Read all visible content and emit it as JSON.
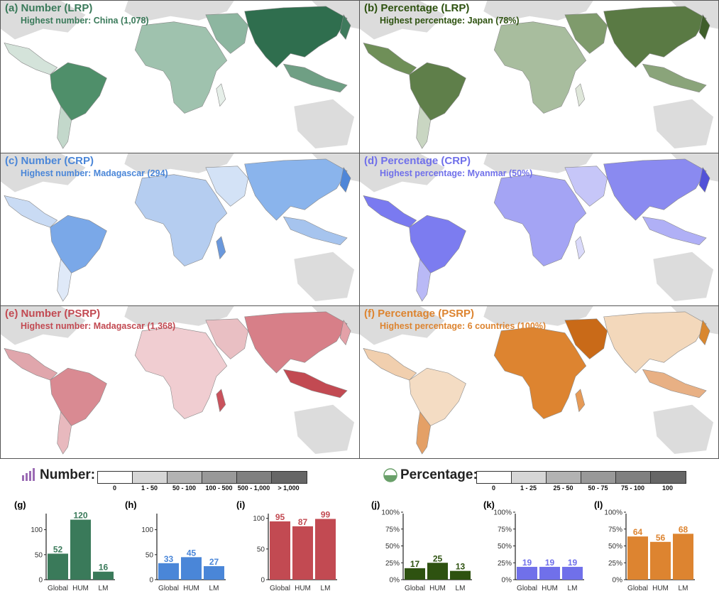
{
  "panels": [
    {
      "id": "a",
      "title": "(a) Number (LRP)",
      "subtitle": "Highest number: China (1,078)",
      "color": "#3a7a5a",
      "fill": "#4f8f6a"
    },
    {
      "id": "b",
      "title": "(b) Percentage (LRP)",
      "subtitle": "Highest percentage: Japan (78%)",
      "color": "#2e5210",
      "fill": "#5f7f4a"
    },
    {
      "id": "c",
      "title": "(c) Number (CRP)",
      "subtitle": "Highest number: Madagascar (294)",
      "color": "#4a86d8",
      "fill": "#7aa8e8"
    },
    {
      "id": "d",
      "title": "(d) Percentage (CRP)",
      "subtitle": "Highest percentage: Myanmar (50%)",
      "color": "#7070ea",
      "fill": "#8a8af0"
    },
    {
      "id": "e",
      "title": "(e) Number (PSRP)",
      "subtitle": "Highest number: Madagascar (1,368)",
      "color": "#c24a52",
      "fill": "#d98a92"
    },
    {
      "id": "f",
      "title": "(f) Percentage (PSRP)",
      "subtitle": "Highest percentage: 6 countries (100%)",
      "color": "#dd8430",
      "fill": "#e4a066"
    }
  ],
  "legend": {
    "number_label": "Number:",
    "number_ticks": [
      "0",
      "1 - 50",
      "50 - 100",
      "100 - 500",
      "500 - 1,000",
      "> 1,000"
    ],
    "percentage_label": "Percentage:",
    "percentage_ticks": [
      "0",
      "1 - 25",
      "25 - 50",
      "50 - 75",
      "75 - 100",
      "100"
    ],
    "shades": [
      "#ffffff",
      "#d6d6d6",
      "#b3b3b3",
      "#999999",
      "#808080",
      "#666666"
    ]
  },
  "chart_data": [
    {
      "panel": "(g)",
      "type": "bar",
      "categories": [
        "Global",
        "HUM",
        "LM"
      ],
      "values": [
        52,
        120,
        16
      ],
      "ylim": [
        0,
        135
      ],
      "yticks": [
        "0",
        "50",
        "100"
      ],
      "ytick_values": [
        0,
        50,
        100
      ],
      "color": "#3a7a5a"
    },
    {
      "panel": "(h)",
      "type": "bar",
      "categories": [
        "Global",
        "HUM",
        "LM"
      ],
      "values": [
        33,
        45,
        27
      ],
      "ylim": [
        0,
        135
      ],
      "yticks": [
        "0",
        "50",
        "100"
      ],
      "ytick_values": [
        0,
        50,
        100
      ],
      "color": "#4a86d8"
    },
    {
      "panel": "(i)",
      "type": "bar",
      "categories": [
        "Global",
        "HUM",
        "LM"
      ],
      "values": [
        95,
        87,
        99
      ],
      "ylim": [
        0,
        110
      ],
      "yticks": [
        "0",
        "50",
        "100"
      ],
      "ytick_values": [
        0,
        50,
        100
      ],
      "color": "#c24a52"
    },
    {
      "panel": "(j)",
      "type": "bar",
      "categories": [
        "Global",
        "HUM",
        "LM"
      ],
      "values": [
        17,
        25,
        13
      ],
      "ylim": [
        0,
        100
      ],
      "yticks": [
        "0%",
        "25%",
        "50%",
        "75%",
        "100%"
      ],
      "ytick_values": [
        0,
        25,
        50,
        75,
        100
      ],
      "color": "#2e5210"
    },
    {
      "panel": "(k)",
      "type": "bar",
      "categories": [
        "Global",
        "HUM",
        "LM"
      ],
      "values": [
        19,
        19,
        19
      ],
      "ylim": [
        0,
        100
      ],
      "yticks": [
        "0%",
        "25%",
        "50%",
        "75%",
        "100%"
      ],
      "ytick_values": [
        0,
        25,
        50,
        75,
        100
      ],
      "color": "#7070ea"
    },
    {
      "panel": "(l)",
      "type": "bar",
      "categories": [
        "Global",
        "HUM",
        "LM"
      ],
      "values": [
        64,
        56,
        68
      ],
      "ylim": [
        0,
        100
      ],
      "yticks": [
        "0%",
        "25%",
        "50%",
        "75%",
        "100%"
      ],
      "ytick_values": [
        0,
        25,
        50,
        75,
        100
      ],
      "color": "#dd8430"
    }
  ]
}
